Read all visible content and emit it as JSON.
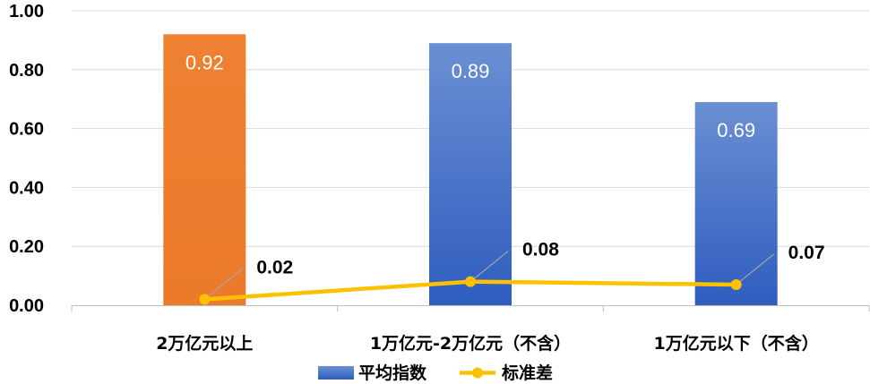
{
  "chart_data": {
    "type": "bar",
    "categories": [
      "2万亿元以上",
      "1万亿元-2万亿元（不含）",
      "1万亿元以下（不含）"
    ],
    "series": [
      {
        "name": "平均指数",
        "kind": "bar",
        "values": [
          0.92,
          0.89,
          0.69
        ],
        "colors": [
          "#ED7D31",
          "#4472C4",
          "#4472C4"
        ]
      },
      {
        "name": "标准差",
        "kind": "line",
        "values": [
          0.02,
          0.08,
          0.07
        ],
        "color": "#FFC000"
      }
    ],
    "ylim": [
      0,
      1.0
    ],
    "yticks": [
      "0.00",
      "0.20",
      "0.40",
      "0.60",
      "0.80",
      "1.00"
    ],
    "bar_labels": [
      "0.92",
      "0.89",
      "0.69"
    ],
    "line_labels": [
      "0.02",
      "0.08",
      "0.07"
    ],
    "grid": true,
    "legend_position": "bottom"
  }
}
